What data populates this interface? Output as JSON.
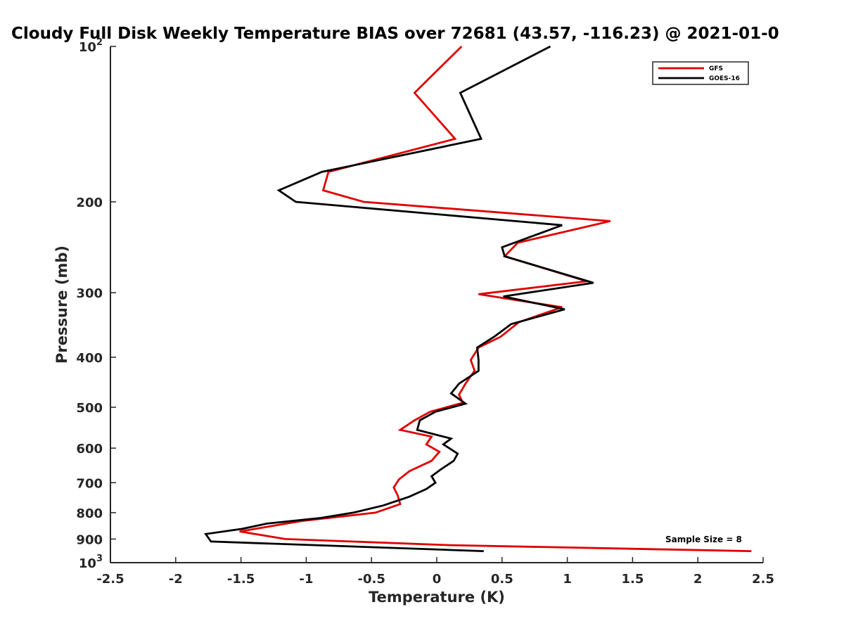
{
  "chart_data": {
    "type": "line",
    "title": "Cloudy Full Disk Weekly Temperature BIAS over 72681 (43.57, -116.23) @ 2021-01-0",
    "xlabel": "Temperature (K)",
    "ylabel": "Pressure (mb)",
    "xlim": [
      -2.5,
      2.5
    ],
    "ylim": [
      100,
      1000
    ],
    "y_scale": "log",
    "y_reversed": true,
    "grid": false,
    "legend_position": "top-right",
    "x_ticks": [
      -2.5,
      -2,
      -1.5,
      -1,
      -0.5,
      0,
      0.5,
      1,
      1.5,
      2,
      2.5
    ],
    "x_tick_labels": [
      "-2.5",
      "-2",
      "-1.5",
      "-1",
      "-0.5",
      "0",
      "0.5",
      "1",
      "1.5",
      "2",
      "2.5"
    ],
    "y_ticks": [
      100,
      200,
      300,
      400,
      500,
      600,
      700,
      800,
      900,
      1000
    ],
    "y_tick_labels": [
      {
        "base": "10",
        "exp": "2"
      },
      {
        "base": "200",
        "exp": ""
      },
      {
        "base": "300",
        "exp": ""
      },
      {
        "base": "400",
        "exp": ""
      },
      {
        "base": "500",
        "exp": ""
      },
      {
        "base": "600",
        "exp": ""
      },
      {
        "base": "700",
        "exp": ""
      },
      {
        "base": "800",
        "exp": ""
      },
      {
        "base": "900",
        "exp": ""
      },
      {
        "base": "10",
        "exp": "3"
      }
    ],
    "annotation": "Sample Size = 8",
    "series": [
      {
        "name": "GFS",
        "color": "#e00000",
        "points": [
          [
            0.19,
            100
          ],
          [
            -0.17,
            123
          ],
          [
            0.14,
            151
          ],
          [
            -0.83,
            175
          ],
          [
            -0.87,
            190
          ],
          [
            -0.56,
            200
          ],
          [
            1.33,
            218
          ],
          [
            0.62,
            240
          ],
          [
            0.52,
            255
          ],
          [
            1.15,
            285
          ],
          [
            0.32,
            302
          ],
          [
            0.96,
            320
          ],
          [
            0.63,
            342
          ],
          [
            0.49,
            365
          ],
          [
            0.32,
            383
          ],
          [
            0.26,
            405
          ],
          [
            0.29,
            425
          ],
          [
            0.22,
            450
          ],
          [
            0.17,
            473
          ],
          [
            0.2,
            490
          ],
          [
            -0.05,
            510
          ],
          [
            -0.17,
            530
          ],
          [
            -0.28,
            553
          ],
          [
            -0.04,
            570
          ],
          [
            -0.08,
            590
          ],
          [
            0.02,
            610
          ],
          [
            -0.04,
            635
          ],
          [
            -0.21,
            665
          ],
          [
            -0.29,
            690
          ],
          [
            -0.33,
            715
          ],
          [
            -0.3,
            740
          ],
          [
            -0.28,
            770
          ],
          [
            -0.47,
            800
          ],
          [
            -1.03,
            830
          ],
          [
            -1.51,
            870
          ],
          [
            -1.16,
            900
          ],
          [
            0.1,
            925
          ],
          [
            2.41,
            950
          ]
        ]
      },
      {
        "name": "GOES-16",
        "color": "#000000",
        "points": [
          [
            0.87,
            100
          ],
          [
            0.18,
            123
          ],
          [
            0.34,
            151
          ],
          [
            -0.88,
            175
          ],
          [
            -1.21,
            190
          ],
          [
            -1.08,
            200
          ],
          [
            0.96,
            222
          ],
          [
            0.5,
            245
          ],
          [
            0.52,
            255
          ],
          [
            1.2,
            287
          ],
          [
            0.51,
            305
          ],
          [
            0.98,
            323
          ],
          [
            0.57,
            345
          ],
          [
            0.44,
            365
          ],
          [
            0.31,
            383
          ],
          [
            0.32,
            405
          ],
          [
            0.32,
            425
          ],
          [
            0.17,
            450
          ],
          [
            0.11,
            470
          ],
          [
            0.22,
            492
          ],
          [
            -0.01,
            510
          ],
          [
            -0.13,
            530
          ],
          [
            -0.15,
            553
          ],
          [
            0.11,
            575
          ],
          [
            0.05,
            590
          ],
          [
            0.16,
            615
          ],
          [
            0.13,
            635
          ],
          [
            0.03,
            660
          ],
          [
            -0.04,
            680
          ],
          [
            -0.01,
            700
          ],
          [
            -0.08,
            720
          ],
          [
            -0.21,
            745
          ],
          [
            -0.41,
            775
          ],
          [
            -0.64,
            800
          ],
          [
            -0.9,
            820
          ],
          [
            -1.3,
            840
          ],
          [
            -1.49,
            860
          ],
          [
            -1.77,
            880
          ],
          [
            -1.73,
            910
          ],
          [
            0.36,
            950
          ]
        ]
      }
    ]
  }
}
